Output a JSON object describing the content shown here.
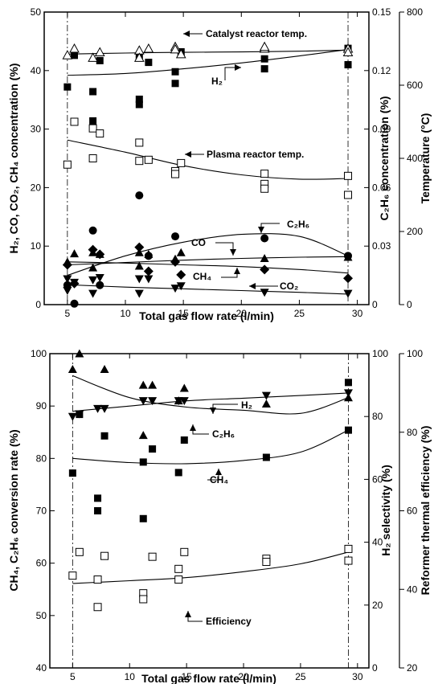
{
  "chart_data": [
    {
      "type": "scatter",
      "xlabel": "Total gas flow rate (l/min)",
      "ylabel": "H₂, CO, CO₂, CH₄ concentration (%)",
      "y2label": "C₂H₆ concentration (%)",
      "y3label": "Temperature (°C)",
      "xlim": [
        3,
        31
      ],
      "ylim": [
        0,
        50
      ],
      "y2lim": [
        0,
        0.15
      ],
      "y3lim": [
        0,
        800
      ],
      "x_ticks": [
        "5",
        "10",
        "15",
        "20",
        "25",
        "30"
      ],
      "y_ticks": [
        "0",
        "10",
        "20",
        "30",
        "40",
        "50"
      ],
      "y2_ticks": [
        "0",
        "0.03",
        "0.06",
        "0.09",
        "0.12",
        "0.15"
      ],
      "y3_ticks": [
        "0",
        "200",
        "400",
        "600",
        "800"
      ],
      "vlines": [
        5,
        29.2
      ],
      "series": [
        {
          "axis": "y",
          "marker": "filled-square",
          "name": "H₂",
          "x": [
            5,
            5.6,
            7.2,
            7.2,
            7.8,
            11.2,
            11.2,
            11.2,
            12,
            14.3,
            14.3,
            14.8,
            22,
            22,
            29.2,
            29.2
          ],
          "y": [
            37.2,
            42.6,
            31.4,
            36.4,
            41.7,
            34.2,
            35.1,
            42.2,
            41.4,
            37.8,
            39.8,
            43.2,
            40.3,
            42,
            41,
            43.8
          ],
          "fit": [
            39.2,
            39.5,
            40.3,
            41.3,
            42.5,
            43.6
          ]
        },
        {
          "axis": "y3",
          "marker": "open-triangle",
          "name": "Catalyst reactor temp.",
          "x": [
            5,
            5.6,
            7.2,
            7.8,
            11.2,
            11.2,
            12,
            14.3,
            14.3,
            14.8,
            22,
            22,
            29.2,
            29.2
          ],
          "y": [
            682,
            700,
            675,
            690,
            695,
            675,
            700,
            705,
            698,
            685,
            700,
            705,
            700,
            690
          ],
          "fit": [
            685,
            688,
            690,
            691,
            693,
            696
          ]
        },
        {
          "axis": "y3",
          "marker": "open-square",
          "name": "Plasma reactor temp.",
          "x": [
            5,
            5.6,
            7.2,
            7.2,
            7.8,
            11.2,
            11.2,
            12,
            14.3,
            14.3,
            14.8,
            22,
            22,
            22,
            29.2,
            29.2
          ],
          "y": [
            383,
            500,
            482,
            400,
            468,
            443,
            393,
            396,
            365,
            357,
            387,
            358,
            330,
            317,
            352,
            300
          ],
          "fit": [
            450,
            417,
            380,
            355,
            343,
            345
          ]
        },
        {
          "axis": "y2",
          "marker": "filled-circle",
          "name": "C₂H₆",
          "x": [
            5,
            5.6,
            7.2,
            7.8,
            11.2,
            12,
            14.3,
            22,
            29.2
          ],
          "y": [
            0.01,
            0.0005,
            0.038,
            0.01,
            0.056,
            0.025,
            0.035,
            0.034,
            0.025
          ],
          "fit": [
            0.015,
            0.025,
            0.032,
            0.036,
            0.035,
            0.025
          ]
        },
        {
          "axis": "y",
          "marker": "filled-triangle",
          "name": "CO",
          "x": [
            5,
            5.6,
            7.2,
            7.2,
            7.8,
            11.2,
            11.2,
            12,
            14.3,
            14.8,
            22,
            29.2
          ],
          "y": [
            7.3,
            8.7,
            6.3,
            8.9,
            8.6,
            6.6,
            8.9,
            8.6,
            7.8,
            8.9,
            7.9,
            8.1
          ],
          "fit": [
            6.8,
            7.2,
            7.6,
            7.9,
            8.1,
            8.2
          ]
        },
        {
          "axis": "y",
          "marker": "filled-diamond",
          "name": "CH₄",
          "x": [
            5,
            5.6,
            7.2,
            7.8,
            11.2,
            12,
            14.3,
            14.8,
            22,
            29.2
          ],
          "y": [
            6.8,
            3.6,
            9.4,
            8.6,
            9.8,
            5.7,
            7.3,
            5.1,
            6,
            4.5
          ],
          "fit": [
            7.3,
            7.1,
            6.8,
            6.5,
            6,
            5.4
          ]
        },
        {
          "axis": "y",
          "marker": "filled-down-triangle",
          "name": "CO₂",
          "x": [
            5,
            5,
            5.6,
            7.2,
            7.2,
            7.8,
            11.2,
            11.2,
            12,
            14.3,
            14.8,
            22,
            29.2
          ],
          "y": [
            4.4,
            2.4,
            3.8,
            1.9,
            4.2,
            4.6,
            1.9,
            4.4,
            4.4,
            2.8,
            3.2,
            2.1,
            1.9
          ],
          "fit": [
            3.4,
            3,
            2.7,
            2.4,
            2.1,
            1.8
          ]
        }
      ],
      "annotations": [
        "Catalyst reactor temp.",
        "H₂",
        "Plasma reactor temp.",
        "C₂H₆",
        "CO",
        "CH₄",
        "CO₂"
      ]
    },
    {
      "type": "scatter",
      "xlabel": "Total gas flow rate (l/min)",
      "ylabel": "CH₄, C₂H₆ conversion rate (%)",
      "y2label": "H₂ selectivity (%)",
      "y3label": "Reformer thermal efficiency (%)",
      "xlim": [
        3,
        31
      ],
      "ylim": [
        40,
        100
      ],
      "y2lim": [
        0,
        100
      ],
      "y3lim": [
        20,
        100
      ],
      "x_ticks": [
        "5",
        "10",
        "15",
        "20",
        "25",
        "30"
      ],
      "y_ticks": [
        "40",
        "50",
        "60",
        "70",
        "80",
        "90",
        "100"
      ],
      "y2_ticks": [
        "0",
        "20",
        "40",
        "60",
        "80",
        "100"
      ],
      "y3_ticks": [
        "20",
        "40",
        "60",
        "80",
        "100"
      ],
      "vlines": [
        5,
        29.2
      ],
      "series": [
        {
          "axis": "y2",
          "marker": "filled-triangle",
          "name": "H₂",
          "x": [
            5,
            5.6,
            7.8,
            11.2,
            11.2,
            12,
            14.3,
            14.8,
            22,
            29.2
          ],
          "y": [
            95,
            100,
            95,
            74,
            90,
            90,
            85,
            89,
            84,
            86
          ],
          "fit": [
            93,
            86,
            83,
            82,
            81,
            86
          ]
        },
        {
          "axis": "y",
          "marker": "filled-down-triangle",
          "name": "C₂H₆",
          "x": [
            5,
            5.6,
            7.2,
            7.8,
            11.2,
            12,
            14.3,
            14.8,
            22,
            29.2
          ],
          "y": [
            88,
            88.5,
            89.5,
            89.5,
            91,
            91,
            91,
            91,
            92,
            92.5
          ],
          "fit": [
            89,
            90,
            91,
            91.5,
            92,
            92.5
          ]
        },
        {
          "axis": "y",
          "marker": "filled-square",
          "name": "CH₄",
          "x": [
            5,
            5.6,
            7.2,
            7.2,
            7.8,
            11.2,
            11.2,
            12,
            14.3,
            14.8,
            22,
            29.2,
            29.2
          ],
          "y": [
            77.2,
            88.4,
            72.4,
            70,
            84.3,
            79.3,
            68.5,
            81.8,
            77.3,
            83.5,
            80.2,
            85.4,
            94.5
          ],
          "fit": [
            80,
            79.2,
            79,
            79.6,
            81.2,
            85.4
          ]
        },
        {
          "axis": "y3",
          "marker": "open-square",
          "name": "Efficiency",
          "x": [
            5,
            5.6,
            7.2,
            7.2,
            7.8,
            11.2,
            11.2,
            12,
            14.3,
            14.3,
            14.8,
            22,
            22,
            29.2,
            29.2
          ],
          "y": [
            43.5,
            49.5,
            42.5,
            35.5,
            48.5,
            39,
            37.5,
            48.3,
            42.5,
            45.2,
            49.5,
            47.8,
            47,
            50.3,
            47.3
          ],
          "fit": [
            41.5,
            42.2,
            43,
            44.5,
            46.5,
            49.5
          ]
        }
      ],
      "annotations": [
        "H₂",
        "C₂H₆",
        "CH₄",
        "Efficiency"
      ]
    }
  ]
}
